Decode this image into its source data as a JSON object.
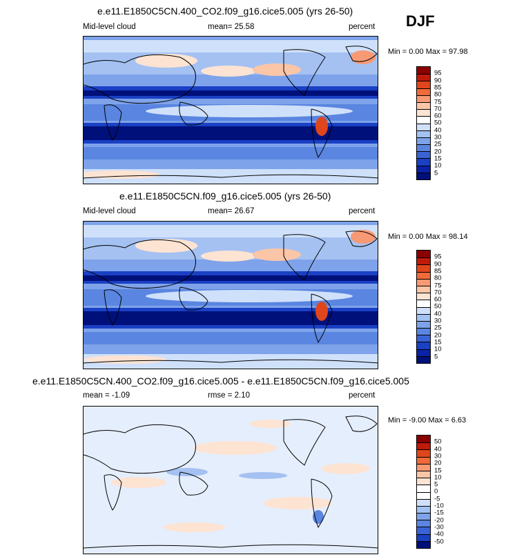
{
  "season": "DJF",
  "panels": [
    {
      "title": "e.e11.E1850C5CN.400_CO2.f09_g16.cice5.005 (yrs 26-50)",
      "left_label": "Mid-level cloud",
      "mean_label": "mean=  25.58",
      "units": "percent",
      "minmax": "Min =   0.00 Max =  97.98",
      "levels": [
        "95",
        "90",
        "85",
        "80",
        "75",
        "70",
        "60",
        "50",
        "40",
        "30",
        "25",
        "20",
        "15",
        "10",
        "5"
      ],
      "palette": "abs"
    },
    {
      "title": "e.e11.E1850C5CN.f09_g16.cice5.005 (yrs 26-50)",
      "left_label": "Mid-level cloud",
      "mean_label": "mean=  26.67",
      "units": "percent",
      "minmax": "Min =   0.00 Max =  98.14",
      "levels": [
        "95",
        "90",
        "85",
        "80",
        "75",
        "70",
        "60",
        "50",
        "40",
        "30",
        "25",
        "20",
        "15",
        "10",
        "5"
      ],
      "palette": "abs"
    },
    {
      "title": "e.e11.E1850C5CN.400_CO2.f09_g16.cice5.005 - e.e11.E1850C5CN.f09_g16.cice5.005",
      "left_label": "mean =  -1.09",
      "mean_label": "rmse =   2.10",
      "units": "percent",
      "minmax": "Min =  -9.00 Max =   6.63",
      "levels": [
        "50",
        "40",
        "30",
        "20",
        "15",
        "10",
        "5",
        "0",
        "-5",
        "-10",
        "-15",
        "-20",
        "-30",
        "-40",
        "-50"
      ],
      "palette": "diff"
    }
  ],
  "colors": {
    "abs": [
      "#8b0000",
      "#c01a0a",
      "#e0461c",
      "#f06a3a",
      "#f79a74",
      "#fbc5a8",
      "#fde3d2",
      "#ffffff",
      "#cfe0fa",
      "#a4c1f2",
      "#7ea3ea",
      "#5a85e0",
      "#3a64d6",
      "#1a40c4",
      "#0a22a8",
      "#00107a"
    ],
    "diff": [
      "#8b0000",
      "#c01a0a",
      "#e0461c",
      "#f06a3a",
      "#f79a74",
      "#fbc5a8",
      "#fde3d2",
      "#ffffff",
      "#ffffff",
      "#cfe0fa",
      "#a4c1f2",
      "#7ea3ea",
      "#5a85e0",
      "#3a64d6",
      "#1a40c4",
      "#00107a"
    ]
  }
}
